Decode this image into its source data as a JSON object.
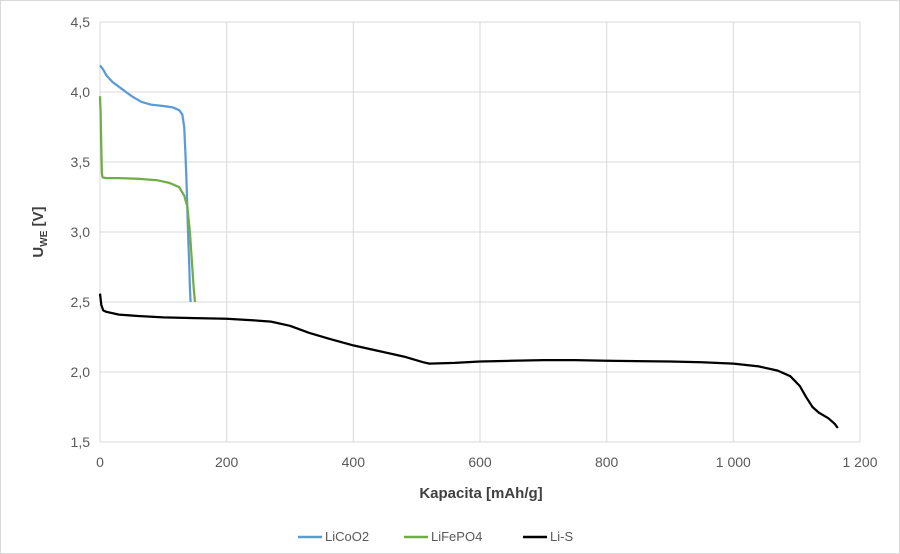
{
  "chart_data": {
    "type": "line",
    "xlabel": "Kapacita [mAh/g]",
    "ylabel": {
      "main": "U",
      "subscript": "WE",
      "unit": " [V]"
    },
    "xlim": [
      0,
      1200
    ],
    "ylim": [
      1.5,
      4.5
    ],
    "x_ticks": [
      0,
      200,
      400,
      600,
      800,
      1000,
      1200
    ],
    "x_tick_labels": [
      "0",
      "200",
      "400",
      "600",
      "800",
      "1 000",
      "1 200"
    ],
    "y_ticks": [
      1.5,
      2.0,
      2.5,
      3.0,
      3.5,
      4.0,
      4.5
    ],
    "y_tick_labels": [
      "1,5",
      "2,0",
      "2,5",
      "3,0",
      "3,5",
      "4,0",
      "4,5"
    ],
    "grid": true,
    "legend_position": "bottom",
    "series": [
      {
        "name": "LiCoO2",
        "color": "#5b9bd5",
        "points": [
          [
            0,
            4.19
          ],
          [
            5,
            4.16
          ],
          [
            10,
            4.12
          ],
          [
            20,
            4.07
          ],
          [
            35,
            4.02
          ],
          [
            50,
            3.97
          ],
          [
            65,
            3.93
          ],
          [
            80,
            3.91
          ],
          [
            100,
            3.9
          ],
          [
            115,
            3.89
          ],
          [
            125,
            3.87
          ],
          [
            130,
            3.84
          ],
          [
            133,
            3.75
          ],
          [
            135,
            3.55
          ],
          [
            137,
            3.3
          ],
          [
            139,
            3.0
          ],
          [
            141,
            2.75
          ],
          [
            142,
            2.6
          ],
          [
            143,
            2.5
          ]
        ]
      },
      {
        "name": "LiFePO4",
        "color": "#70ad47",
        "points": [
          [
            0,
            3.97
          ],
          [
            1,
            3.85
          ],
          [
            2,
            3.6
          ],
          [
            3,
            3.42
          ],
          [
            4,
            3.39
          ],
          [
            10,
            3.385
          ],
          [
            30,
            3.385
          ],
          [
            60,
            3.38
          ],
          [
            90,
            3.37
          ],
          [
            110,
            3.35
          ],
          [
            125,
            3.32
          ],
          [
            133,
            3.26
          ],
          [
            138,
            3.18
          ],
          [
            142,
            3.0
          ],
          [
            145,
            2.8
          ],
          [
            148,
            2.6
          ],
          [
            150,
            2.5
          ]
        ]
      },
      {
        "name": "Li-S",
        "color": "#000000",
        "points": [
          [
            0,
            2.56
          ],
          [
            2,
            2.48
          ],
          [
            5,
            2.44
          ],
          [
            10,
            2.43
          ],
          [
            30,
            2.41
          ],
          [
            60,
            2.4
          ],
          [
            100,
            2.39
          ],
          [
            150,
            2.385
          ],
          [
            200,
            2.38
          ],
          [
            240,
            2.37
          ],
          [
            270,
            2.36
          ],
          [
            300,
            2.33
          ],
          [
            330,
            2.28
          ],
          [
            360,
            2.24
          ],
          [
            400,
            2.19
          ],
          [
            440,
            2.15
          ],
          [
            480,
            2.11
          ],
          [
            510,
            2.07
          ],
          [
            520,
            2.06
          ],
          [
            560,
            2.065
          ],
          [
            600,
            2.075
          ],
          [
            650,
            2.08
          ],
          [
            700,
            2.085
          ],
          [
            750,
            2.085
          ],
          [
            800,
            2.08
          ],
          [
            900,
            2.075
          ],
          [
            950,
            2.07
          ],
          [
            1000,
            2.06
          ],
          [
            1040,
            2.04
          ],
          [
            1070,
            2.01
          ],
          [
            1090,
            1.97
          ],
          [
            1105,
            1.9
          ],
          [
            1115,
            1.82
          ],
          [
            1125,
            1.75
          ],
          [
            1135,
            1.71
          ],
          [
            1150,
            1.67
          ],
          [
            1160,
            1.63
          ],
          [
            1165,
            1.6
          ]
        ]
      }
    ]
  }
}
